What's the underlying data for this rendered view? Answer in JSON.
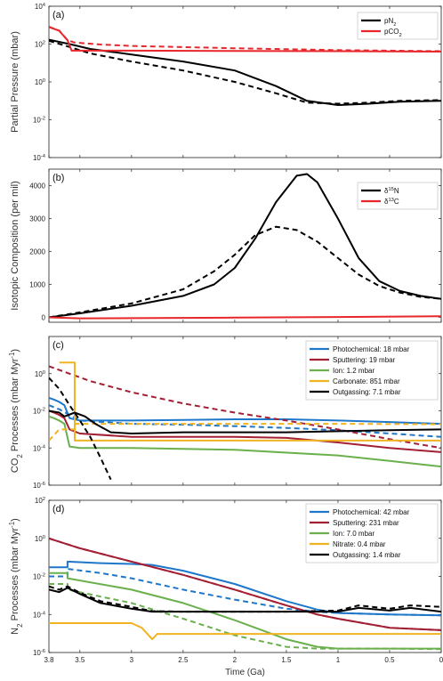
{
  "figure": {
    "x_axis": {
      "label": "Time (Ga)",
      "ticks": [
        "3.8",
        "3.5",
        "3",
        "2.5",
        "2",
        "1.5",
        "1",
        "0.5",
        "0"
      ]
    }
  },
  "chart_data": [
    {
      "panel": "(a)",
      "type": "line",
      "ylabel": "Partial Pressure (mbar)",
      "yscale": "log",
      "ylim": [
        0.0001,
        10000
      ],
      "yticks": [
        "10^{4}",
        "10^{2}",
        "10^{0}",
        "10^{-2}",
        "10^{-4}"
      ],
      "legend": "top-right",
      "series": [
        {
          "name": "pN_2",
          "color": "#000000",
          "dash": false,
          "x": [
            3.8,
            3.6,
            3.4,
            3.0,
            2.5,
            2.0,
            1.6,
            1.3,
            1.0,
            0.7,
            0.4,
            0.0
          ],
          "y": [
            170,
            100,
            55,
            28,
            12,
            4,
            0.6,
            0.1,
            0.06,
            0.07,
            0.09,
            0.1
          ]
        },
        {
          "name": "",
          "color": "#000000",
          "dash": true,
          "x": [
            3.8,
            3.6,
            3.4,
            3.0,
            2.5,
            2.0,
            1.6,
            1.3,
            1.0,
            0.7,
            0.4,
            0.0
          ],
          "y": [
            150,
            70,
            32,
            12,
            4,
            1,
            0.25,
            0.08,
            0.07,
            0.08,
            0.1,
            0.11
          ]
        },
        {
          "name": "pCO_2",
          "color": "#e8262b",
          "dash": false,
          "x": [
            3.8,
            3.7,
            3.62,
            3.58,
            3.5,
            3.0,
            2.0,
            1.0,
            0.0
          ],
          "y": [
            800,
            500,
            160,
            45,
            45,
            45,
            43,
            42,
            40
          ]
        },
        {
          "name": "",
          "color": "#e8262b",
          "dash": true,
          "x": [
            3.8,
            3.7,
            3.62,
            3.55,
            3.3,
            3.0,
            2.0,
            1.0,
            0.0
          ],
          "y": [
            820,
            520,
            160,
            120,
            95,
            80,
            60,
            48,
            42
          ]
        }
      ]
    },
    {
      "panel": "(b)",
      "type": "line",
      "ylabel": "Isotopic Composition (per mil)",
      "yscale": "linear",
      "ylim": [
        -150,
        4500
      ],
      "yticks": [
        "4000",
        "3000",
        "2000",
        "1000",
        "0"
      ],
      "legend": "top-right",
      "series": [
        {
          "name": "δ^{15}N",
          "color": "#000000",
          "dash": false,
          "x": [
            3.8,
            3.5,
            3.0,
            2.5,
            2.2,
            2.0,
            1.8,
            1.6,
            1.4,
            1.3,
            1.2,
            1.0,
            0.8,
            0.6,
            0.4,
            0.2,
            0.0
          ],
          "y": [
            0,
            120,
            350,
            650,
            1000,
            1500,
            2400,
            3500,
            4300,
            4350,
            4100,
            3000,
            1800,
            1100,
            800,
            650,
            560
          ]
        },
        {
          "name": "",
          "color": "#000000",
          "dash": true,
          "x": [
            3.8,
            3.5,
            3.0,
            2.5,
            2.2,
            2.0,
            1.8,
            1.6,
            1.4,
            1.2,
            1.0,
            0.8,
            0.6,
            0.4,
            0.2,
            0.0
          ],
          "y": [
            0,
            150,
            420,
            850,
            1400,
            1900,
            2500,
            2750,
            2650,
            2300,
            1800,
            1300,
            950,
            750,
            620,
            560
          ]
        },
        {
          "name": "δ^{13}C",
          "color": "#e8262b",
          "dash": false,
          "x": [
            3.8,
            3.6,
            3.5,
            3.0,
            2.0,
            1.0,
            0.0
          ],
          "y": [
            0,
            -20,
            -30,
            -25,
            -10,
            10,
            30
          ]
        }
      ]
    },
    {
      "panel": "(c)",
      "type": "line",
      "ylabel": "CO_2 Processes (mbar Myr^{-1})",
      "yscale": "log",
      "ylim": [
        1e-06,
        100
      ],
      "yticks": [
        "10^{0}",
        "10^{-2}",
        "10^{-4}",
        "10^{-6}"
      ],
      "legend": "top-right",
      "series": [
        {
          "name": "Photochemical: 18 mbar",
          "color": "#1f77c9",
          "dash": false,
          "x": [
            3.8,
            3.75,
            3.7,
            3.65,
            3.6,
            3.5,
            3.0,
            2.5,
            2.0,
            1.5,
            1.0,
            0.5,
            0.0
          ],
          "y": [
            0.05,
            0.04,
            0.03,
            0.02,
            0.004,
            0.003,
            0.003,
            0.0032,
            0.0035,
            0.0035,
            0.003,
            0.0025,
            0.002
          ]
        },
        {
          "name": "",
          "color": "#1f77c9",
          "dash": true,
          "x": [
            3.8,
            3.7,
            3.6,
            3.5,
            3.0,
            2.5,
            2.0,
            1.5,
            1.0,
            0.5,
            0.0
          ],
          "y": [
            0.02,
            0.012,
            0.006,
            0.003,
            0.002,
            0.0018,
            0.0015,
            0.0012,
            0.0009,
            0.0006,
            0.0004
          ]
        },
        {
          "name": "Sputtering: 19 mbar",
          "color": "#a31f33",
          "dash": false,
          "x": [
            3.8,
            3.75,
            3.7,
            3.65,
            3.6,
            3.5,
            3.0,
            2.5,
            2.0,
            1.5,
            1.0,
            0.5,
            0.0
          ],
          "y": [
            0.01,
            0.008,
            0.006,
            0.004,
            0.001,
            0.0006,
            0.0004,
            0.0004,
            0.0004,
            0.00035,
            0.0002,
            0.0001,
            6e-05
          ]
        },
        {
          "name": "",
          "color": "#a31f33",
          "dash": true,
          "x": [
            3.8,
            3.6,
            3.4,
            3.0,
            2.5,
            2.0,
            1.5,
            1.0,
            0.5,
            0.0
          ],
          "y": [
            2.5,
            1,
            0.4,
            0.1,
            0.025,
            0.008,
            0.003,
            0.001,
            0.0003,
            0.0001
          ]
        },
        {
          "name": "Ion: 1.2 mbar",
          "color": "#6ab04c",
          "dash": false,
          "x": [
            3.8,
            3.75,
            3.7,
            3.65,
            3.6,
            3.5,
            3.0,
            2.0,
            1.0,
            0.5,
            0.0
          ],
          "y": [
            0.005,
            0.004,
            0.003,
            0.002,
            0.00012,
            0.0001,
            0.0001,
            8e-05,
            4e-05,
            2e-05,
            1e-05
          ]
        },
        {
          "name": "Carbonate: 851 mbar",
          "color": "#f0b323",
          "dash": false,
          "x": [
            3.7,
            3.7,
            3.55,
            3.55,
            3.5,
            3.0,
            2.0,
            1.0,
            0.0
          ],
          "y": [
            4,
            4,
            4,
            0.00025,
            0.00025,
            0.00025,
            0.00025,
            0.00025,
            0.00025
          ]
        },
        {
          "name": "",
          "color": "#f0b323",
          "dash": true,
          "x": [
            3.8,
            3.7,
            3.55,
            3.55,
            3.5,
            3.0,
            2.0,
            1.0,
            0.0
          ],
          "y": [
            0.00025,
            0.001,
            0.001,
            0.002,
            0.002,
            0.002,
            0.002,
            0.002,
            0.0019
          ]
        },
        {
          "name": "Outgassing: 7.1 mbar",
          "color": "#000000",
          "dash": false,
          "x": [
            3.8,
            3.7,
            3.65,
            3.55,
            3.45,
            3.35,
            3.2,
            3.0,
            2.5,
            2.0,
            1.5,
            1.0,
            0.5,
            0.0
          ],
          "y": [
            0.01,
            0.008,
            0.005,
            0.008,
            0.005,
            0.002,
            0.0007,
            0.0006,
            0.0007,
            0.0007,
            0.0007,
            0.0008,
            0.0009,
            0.001
          ]
        },
        {
          "name": "",
          "color": "#000000",
          "dash": true,
          "x": [
            3.8,
            3.7,
            3.6,
            3.5,
            3.4,
            3.3,
            3.2
          ],
          "y": [
            0.6,
            0.15,
            0.02,
            0.003,
            0.0004,
            3e-05,
            2e-06
          ]
        }
      ]
    },
    {
      "panel": "(d)",
      "type": "line",
      "ylabel": "N_2 Processes (mbar Myr^{-1})",
      "yscale": "log",
      "ylim": [
        1e-06,
        100
      ],
      "yticks": [
        "10^{2}",
        "10^{0}",
        "10^{-2}",
        "10^{-4}",
        "10^{-6}"
      ],
      "legend": "top-right",
      "series": [
        {
          "name": "Photochemical: 42 mbar",
          "color": "#1f77c9",
          "dash": false,
          "x": [
            3.8,
            3.62,
            3.62,
            3.3,
            3.0,
            2.8,
            2.5,
            2.0,
            1.5,
            1.2,
            1.0,
            0.5,
            0.0
          ],
          "y": [
            0.03,
            0.03,
            0.06,
            0.05,
            0.045,
            0.04,
            0.02,
            0.004,
            0.0005,
            0.00018,
            0.00012,
            0.0001,
            9e-05
          ]
        },
        {
          "name": "",
          "color": "#1f77c9",
          "dash": true,
          "x": [
            3.8,
            3.62,
            3.62,
            3.3,
            3.0,
            2.5,
            2.0,
            1.5,
            1.2,
            1.0,
            0.5,
            0.0
          ],
          "y": [
            0.01,
            0.01,
            0.025,
            0.015,
            0.008,
            0.002,
            0.0006,
            0.0002,
            0.00014,
            0.00012,
            0.0001,
            9e-05
          ]
        },
        {
          "name": "Sputtering: 231 mbar",
          "color": "#a31f33",
          "dash": false,
          "x": [
            3.8,
            3.5,
            3.0,
            2.5,
            2.0,
            1.5,
            1.2,
            1.0,
            0.5,
            0.0
          ],
          "y": [
            1.0,
            0.3,
            0.06,
            0.012,
            0.002,
            0.0003,
            0.0001,
            6e-05,
            2e-05,
            1.5e-05
          ]
        },
        {
          "name": "",
          "color": "#a31f33",
          "dash": true,
          "x": [
            3.8,
            3.5,
            3.0,
            2.5,
            2.0,
            1.5,
            1.2,
            1.0,
            0.5,
            0.0
          ],
          "y": [
            1.0,
            0.3,
            0.06,
            0.012,
            0.002,
            0.0003,
            0.0001,
            6e-05,
            2e-05,
            1.5e-05
          ]
        },
        {
          "name": "Ion: 7.0 mbar",
          "color": "#6ab04c",
          "dash": false,
          "x": [
            3.8,
            3.62,
            3.62,
            3.0,
            2.5,
            2.0,
            1.5,
            1.2,
            1.0,
            0.5,
            0.0
          ],
          "y": [
            0.015,
            0.015,
            0.008,
            0.002,
            0.0004,
            5e-05,
            5e-06,
            2e-06,
            1.6e-06,
            1.6e-06,
            1.6e-06
          ]
        },
        {
          "name": "",
          "color": "#6ab04c",
          "dash": true,
          "x": [
            3.8,
            3.62,
            3.62,
            3.0,
            2.5,
            2.0,
            1.5,
            1.2,
            1.0,
            0.5,
            0.0
          ],
          "y": [
            0.004,
            0.004,
            0.002,
            0.0004,
            6e-05,
            8e-06,
            2e-06,
            1.6e-06,
            1.6e-06,
            1.6e-06,
            1.5e-06
          ]
        },
        {
          "name": "Nitrate: 0.4 mbar",
          "color": "#f0b323",
          "dash": false,
          "x": [
            3.8,
            3.0,
            2.9,
            2.8,
            2.75,
            2.5,
            2.0,
            1.0,
            0.0
          ],
          "y": [
            3.5e-05,
            3.5e-05,
            2e-05,
            5e-06,
            9.5e-06,
            9.5e-06,
            9.5e-06,
            9.5e-06,
            9.5e-06
          ]
        },
        {
          "name": "Outgassing: 1.4 mbar",
          "color": "#000000",
          "dash": false,
          "x": [
            3.8,
            3.7,
            3.62,
            3.5,
            3.3,
            3.0,
            2.8,
            2.5,
            2.0,
            1.5,
            1.0,
            0.8,
            0.5,
            0.3,
            0.0
          ],
          "y": [
            0.002,
            0.0015,
            0.0025,
            0.0012,
            0.0004,
            0.0002,
            0.00014,
            0.00014,
            0.00014,
            0.00014,
            0.00014,
            0.00022,
            0.00016,
            0.00022,
            0.00014
          ]
        },
        {
          "name": "",
          "color": "#000000",
          "dash": true,
          "x": [
            3.8,
            3.7,
            3.62,
            3.5,
            3.3,
            3.0,
            2.8,
            2.5,
            2.0,
            1.5,
            1.0,
            0.8,
            0.5,
            0.3,
            0.0
          ],
          "y": [
            0.003,
            0.002,
            0.003,
            0.0014,
            0.0005,
            0.00025,
            0.00015,
            0.00014,
            0.00014,
            0.00014,
            0.00016,
            0.0003,
            0.0002,
            0.0003,
            0.00025
          ]
        }
      ]
    }
  ]
}
